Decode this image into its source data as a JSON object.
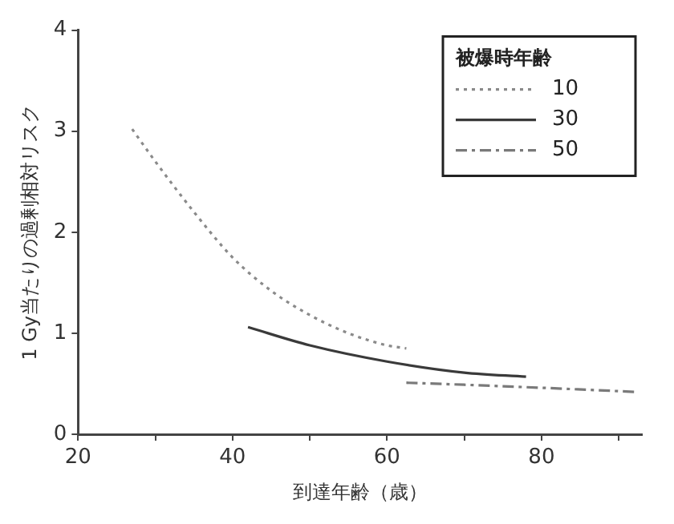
{
  "chart_data": {
    "type": "line",
    "xlabel": "到達年齢（歳）",
    "ylabel": "1 Gy当たりの過剰相対リスク",
    "legend_title": "被爆時年齢",
    "legend": "top right",
    "grid": false,
    "xlim": [
      20,
      93
    ],
    "xticks": [
      20,
      {
        "value": 30,
        "label": null
      },
      40,
      {
        "value": 50,
        "label": null
      },
      60,
      {
        "value": 70,
        "label": null
      },
      80,
      {
        "value": 90,
        "label": null
      }
    ],
    "ylim": [
      0,
      4
    ],
    "yticks": [
      0,
      1,
      2,
      3,
      4
    ],
    "series": [
      {
        "name": "10",
        "color": "#8a8a8a",
        "line_style": "dotted",
        "x": [
          27,
          30,
          35,
          40,
          45,
          50,
          55,
          60,
          62.5
        ],
        "values": [
          3.02,
          2.7,
          2.2,
          1.75,
          1.42,
          1.18,
          1.0,
          0.88,
          0.85
        ]
      },
      {
        "name": "30",
        "color": "#3a3a3a",
        "line_style": "solid",
        "x": [
          42,
          50,
          60,
          70,
          78
        ],
        "values": [
          1.06,
          0.88,
          0.72,
          0.61,
          0.57
        ]
      },
      {
        "name": "50",
        "color": "#7a7a7a",
        "line_style": "dashed",
        "x": [
          62.5,
          70,
          80,
          92
        ],
        "values": [
          0.51,
          0.49,
          0.46,
          0.42
        ]
      }
    ]
  }
}
